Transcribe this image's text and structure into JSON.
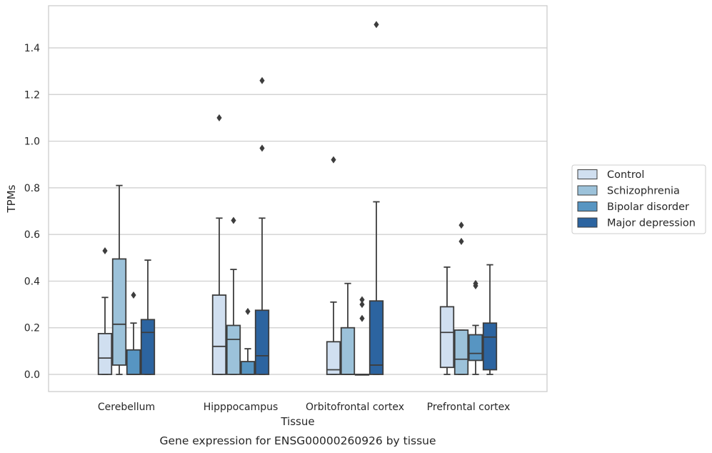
{
  "chart_data": {
    "type": "box",
    "caption": "Gene expression for ENSG00000260926 by tissue",
    "xlabel": "Tissue",
    "ylabel": "TPMs",
    "ylim": [
      -0.07,
      1.58
    ],
    "yticks": [
      "0.0",
      "0.2",
      "0.4",
      "0.6",
      "0.8",
      "1.0",
      "1.2",
      "1.4"
    ],
    "ytick_values": [
      0.0,
      0.2,
      0.4,
      0.6,
      0.8,
      1.0,
      1.2,
      1.4
    ],
    "grid": true,
    "legend_position": "right",
    "categories": [
      "Cerebellum",
      "Hipppocampus",
      "Orbitofrontal cortex",
      "Prefrontal cortex"
    ],
    "series": [
      {
        "name": "Control",
        "color": "#d0dff0",
        "boxes": [
          {
            "whislo": 0.0,
            "q1": 0.0,
            "med": 0.07,
            "q3": 0.175,
            "whishi": 0.33,
            "fliers": [
              0.53
            ]
          },
          {
            "whislo": 0.0,
            "q1": 0.0,
            "med": 0.12,
            "q3": 0.34,
            "whishi": 0.67,
            "fliers": [
              1.1
            ]
          },
          {
            "whislo": 0.0,
            "q1": 0.0,
            "med": 0.02,
            "q3": 0.14,
            "whishi": 0.31,
            "fliers": [
              0.92
            ]
          },
          {
            "whislo": 0.0,
            "q1": 0.03,
            "med": 0.18,
            "q3": 0.29,
            "whishi": 0.46,
            "fliers": []
          }
        ]
      },
      {
        "name": "Schizophrenia",
        "color": "#9cc2da",
        "boxes": [
          {
            "whislo": 0.0,
            "q1": 0.04,
            "med": 0.215,
            "q3": 0.495,
            "whishi": 0.81,
            "fliers": []
          },
          {
            "whislo": 0.0,
            "q1": 0.0,
            "med": 0.15,
            "q3": 0.21,
            "whishi": 0.45,
            "fliers": [
              0.66
            ]
          },
          {
            "whislo": 0.0,
            "q1": 0.0,
            "med": 0.0,
            "q3": 0.2,
            "whishi": 0.39,
            "fliers": []
          },
          {
            "whislo": 0.0,
            "q1": 0.0,
            "med": 0.065,
            "q3": 0.19,
            "whishi": 0.19,
            "fliers": [
              0.57,
              0.64
            ]
          }
        ]
      },
      {
        "name": "Bipolar disorder",
        "color": "#5795c2",
        "boxes": [
          {
            "whislo": 0.0,
            "q1": 0.0,
            "med": 0.0,
            "q3": 0.105,
            "whishi": 0.22,
            "fliers": [
              0.34
            ]
          },
          {
            "whislo": 0.0,
            "q1": 0.0,
            "med": 0.0,
            "q3": 0.055,
            "whishi": 0.11,
            "fliers": [
              0.27
            ]
          },
          {
            "whislo": 0.0,
            "q1": 0.0,
            "med": 0.0,
            "q3": 0.0,
            "whishi": 0.0,
            "fliers": [
              0.24,
              0.3,
              0.32
            ]
          },
          {
            "whislo": 0.0,
            "q1": 0.06,
            "med": 0.09,
            "q3": 0.17,
            "whishi": 0.21,
            "fliers": [
              0.38,
              0.39
            ]
          }
        ]
      },
      {
        "name": "Major depression",
        "color": "#2c64a0",
        "boxes": [
          {
            "whislo": 0.0,
            "q1": 0.0,
            "med": 0.18,
            "q3": 0.235,
            "whishi": 0.49,
            "fliers": []
          },
          {
            "whislo": 0.0,
            "q1": 0.0,
            "med": 0.08,
            "q3": 0.275,
            "whishi": 0.67,
            "fliers": [
              0.97,
              1.26
            ]
          },
          {
            "whislo": 0.0,
            "q1": 0.0,
            "med": 0.04,
            "q3": 0.315,
            "whishi": 0.74,
            "fliers": [
              1.5
            ]
          },
          {
            "whislo": 0.0,
            "q1": 0.02,
            "med": 0.16,
            "q3": 0.22,
            "whishi": 0.47,
            "fliers": []
          }
        ]
      }
    ]
  }
}
